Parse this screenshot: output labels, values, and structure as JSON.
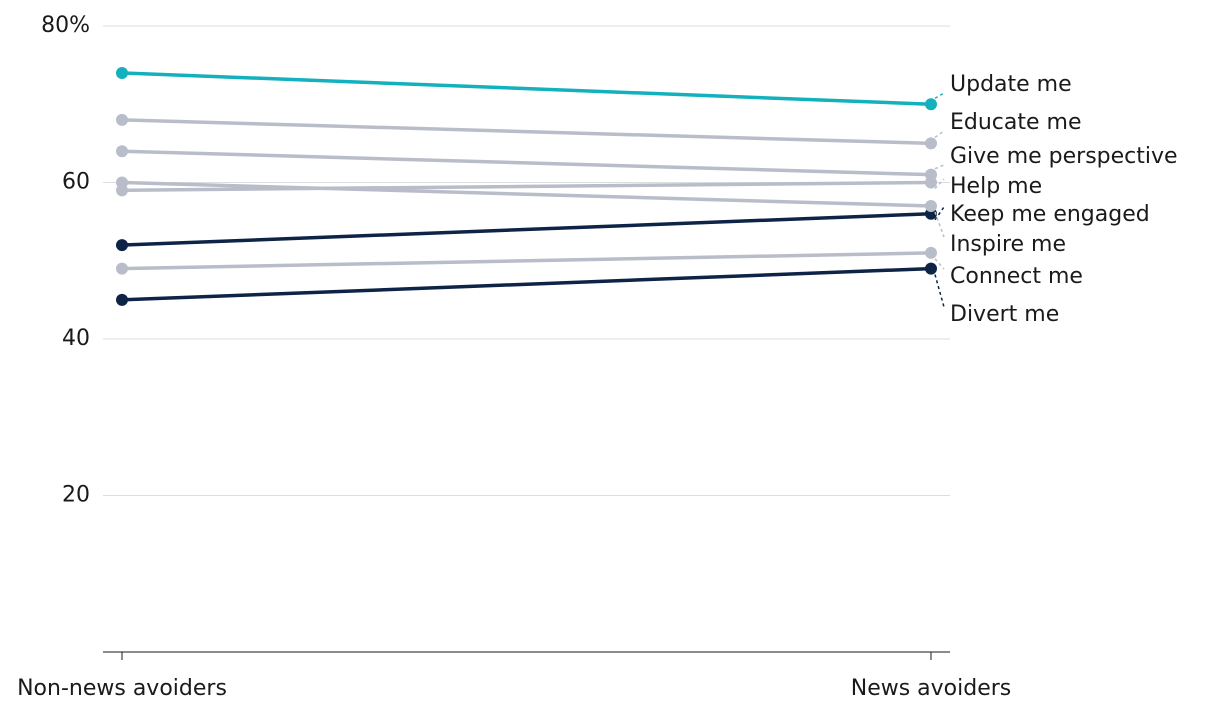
{
  "chart_data": {
    "type": "slope",
    "categories": [
      "Non-news avoiders",
      "News avoiders"
    ],
    "ylim": [
      0,
      80
    ],
    "yticks": [
      {
        "value": 80,
        "label": "80%"
      },
      60,
      40,
      20
    ],
    "grid": true,
    "series": [
      {
        "name": "Update me",
        "color": "#13b1bd",
        "values": [
          74,
          70
        ]
      },
      {
        "name": "Educate me",
        "color": "#b9bdc9",
        "values": [
          68,
          65
        ]
      },
      {
        "name": "Give me perspective",
        "color": "#b9bdc9",
        "values": [
          64,
          61
        ]
      },
      {
        "name": "Help me",
        "color": "#b9bdc9",
        "values": [
          59,
          60
        ]
      },
      {
        "name": "Keep me engaged",
        "color": "#0d2447",
        "values": [
          52,
          56
        ]
      },
      {
        "name": "Inspire me",
        "color": "#b9bdc9",
        "values": [
          60,
          57
        ]
      },
      {
        "name": "Connect me",
        "color": "#b9bdc9",
        "values": [
          49,
          51
        ]
      },
      {
        "name": "Divert me",
        "color": "#0d2447",
        "values": [
          45,
          49
        ]
      }
    ]
  }
}
